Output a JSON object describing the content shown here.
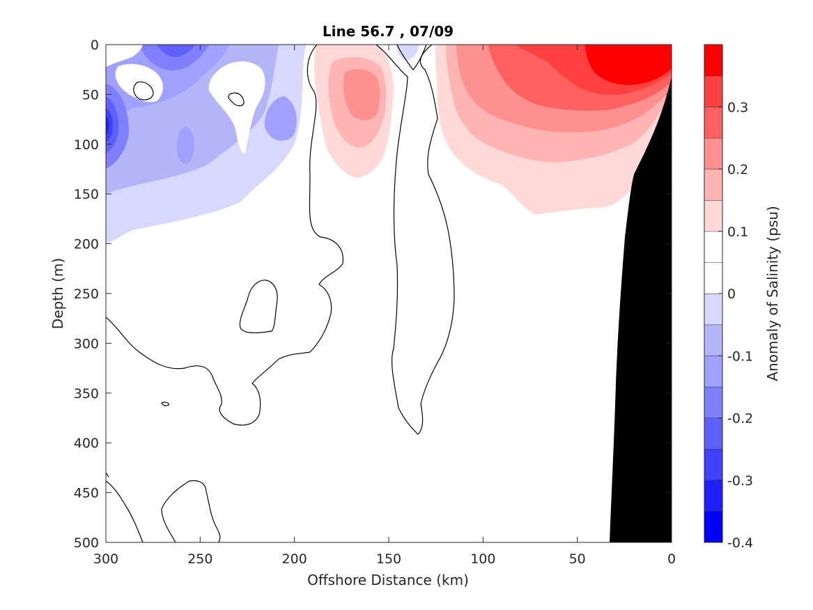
{
  "chart_data": {
    "type": "contourf",
    "title": "Line 56.7 , 07/09",
    "xlabel": "Offshore Distance (km)",
    "ylabel": "Depth (m)",
    "xlim": [
      300,
      0
    ],
    "ylim": [
      0,
      500
    ],
    "x_reversed": true,
    "y_reversed": true,
    "xticks": [
      300,
      250,
      200,
      150,
      100,
      50,
      0
    ],
    "yticks": [
      0,
      50,
      100,
      150,
      200,
      250,
      300,
      350,
      400,
      450,
      500
    ],
    "colorbar": {
      "label": "Anomaly of Salinity (psu)",
      "range": [
        -0.4,
        0.4
      ],
      "ticks": [
        -0.4,
        -0.3,
        -0.2,
        -0.1,
        0,
        0.1,
        0.2,
        0.3
      ],
      "tick_labels": [
        "-0.4",
        "-0.3",
        "-0.2",
        "-0.1",
        "0",
        "0.1",
        "0.2",
        "0.3"
      ],
      "level_step": 0.05,
      "bands": [
        {
          "from": -0.4,
          "to": -0.35,
          "color": "#0000ff"
        },
        {
          "from": -0.35,
          "to": -0.3,
          "color": "#2020ff"
        },
        {
          "from": -0.3,
          "to": -0.25,
          "color": "#4040ff"
        },
        {
          "from": -0.25,
          "to": -0.2,
          "color": "#6060ff"
        },
        {
          "from": -0.2,
          "to": -0.15,
          "color": "#8080ff"
        },
        {
          "from": -0.15,
          "to": -0.1,
          "color": "#a0a0ff"
        },
        {
          "from": -0.1,
          "to": -0.05,
          "color": "#b4b4f8"
        },
        {
          "from": -0.05,
          "to": 0.0,
          "color": "#d8d8fc"
        },
        {
          "from": 0.0,
          "to": 0.05,
          "color": "#ffffff"
        },
        {
          "from": 0.05,
          "to": 0.1,
          "color": "#ffffff"
        },
        {
          "from": 0.1,
          "to": 0.15,
          "color": "#ffd8d8"
        },
        {
          "from": 0.15,
          "to": 0.2,
          "color": "#ffb4b4"
        },
        {
          "from": 0.2,
          "to": 0.25,
          "color": "#ff9090"
        },
        {
          "from": 0.25,
          "to": 0.3,
          "color": "#ff6060"
        },
        {
          "from": 0.3,
          "to": 0.35,
          "color": "#ff4040"
        },
        {
          "from": 0.35,
          "to": 0.4,
          "color": "#ff0000"
        }
      ]
    },
    "regions": [
      {
        "name": "negative-anomaly-zone",
        "approx_x_km": [
          300,
          180
        ],
        "approx_depth_m": [
          0,
          200
        ],
        "min_value": -0.35
      },
      {
        "name": "positive-anomaly-core-offshore",
        "approx_x_km": [
          190,
          140
        ],
        "approx_depth_m": [
          0,
          130
        ],
        "max_value": 0.2
      },
      {
        "name": "positive-anomaly-core-nearshore",
        "approx_x_km": [
          125,
          0
        ],
        "approx_depth_m": [
          0,
          170
        ],
        "max_value": 0.4
      }
    ],
    "zero_contours": true,
    "bathymetry_fill": "#000000"
  }
}
